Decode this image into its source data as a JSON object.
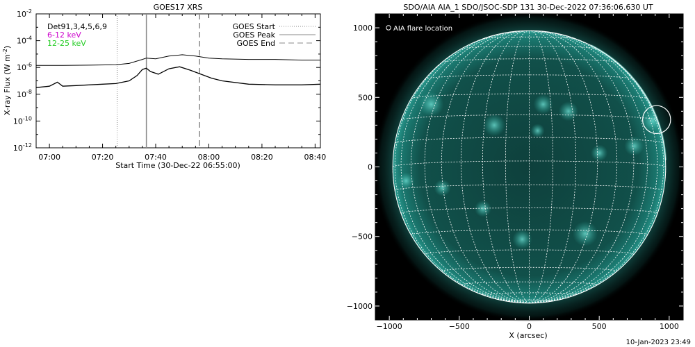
{
  "timestamp": "10-Jan-2023 23:49",
  "chart_data": [
    {
      "type": "line",
      "title": "GOES17 XRS",
      "xlabel": "Start Time (30-Dec-22 06:55:00)",
      "ylabel": "X-ray Flux (W m^-2)",
      "ylabel_main": "X-ray Flux (W m",
      "ylabel_exp": "-2",
      "ylabel_close": ")",
      "xlim_minutes": [
        0,
        107
      ],
      "x_ticks": [
        {
          "label": "07:00",
          "min": 5
        },
        {
          "label": "07:20",
          "min": 25
        },
        {
          "label": "07:40",
          "min": 45
        },
        {
          "label": "08:00",
          "min": 65
        },
        {
          "label": "08:20",
          "min": 85
        },
        {
          "label": "08:40",
          "min": 105
        }
      ],
      "ylim_log": [
        -12,
        -2
      ],
      "y_scale": "log",
      "y_ticks": [
        {
          "exp": -2,
          "base": "10",
          "sup": "-2"
        },
        {
          "exp": -4,
          "base": "10",
          "sup": "-4"
        },
        {
          "exp": -6,
          "base": "10",
          "sup": "-6"
        },
        {
          "exp": -8,
          "base": "10",
          "sup": "-8"
        },
        {
          "exp": -10,
          "base": "10",
          "sup": "-10"
        },
        {
          "exp": -12,
          "base": "10",
          "sup": "-12"
        }
      ],
      "annotation_lines": [
        {
          "text": "Det91,3,4,5,6,9",
          "color": "#000000"
        },
        {
          "text": "6-12 keV",
          "color": "#cc00cc"
        },
        {
          "text": "12-25 keV",
          "color": "#22cc22"
        }
      ],
      "legend": {
        "placement": "top-right",
        "entries": [
          {
            "label": "GOES Start",
            "style": "dotted",
            "color": "#888888"
          },
          {
            "label": "GOES Peak",
            "style": "solid",
            "color": "#888888"
          },
          {
            "label": "GOES End",
            "style": "dashed",
            "color": "#888888"
          }
        ]
      },
      "markers": {
        "start_min": 30.5,
        "peak_min": 41.5,
        "end_min": 61.5
      },
      "series": [
        {
          "color": "#000000",
          "x_min": [
            0,
            10,
            20,
            30,
            35,
            40,
            41.5,
            45,
            50,
            55,
            60,
            65,
            70,
            80,
            90,
            100,
            107
          ],
          "log_flux": [
            -5.85,
            -5.85,
            -5.83,
            -5.8,
            -5.7,
            -5.4,
            -5.3,
            -5.35,
            -5.15,
            -5.05,
            -5.15,
            -5.3,
            -5.35,
            -5.4,
            -5.4,
            -5.45,
            -5.45
          ]
        },
        {
          "color": "#000000",
          "x_min": [
            0,
            5,
            8,
            10,
            15,
            20,
            25,
            30,
            35,
            38,
            40,
            41.5,
            43,
            46,
            50,
            54,
            58,
            62,
            66,
            70,
            80,
            90,
            100,
            107
          ],
          "log_flux": [
            -7.5,
            -7.4,
            -7.1,
            -7.4,
            -7.35,
            -7.3,
            -7.25,
            -7.2,
            -7.0,
            -6.6,
            -6.15,
            -6.05,
            -6.3,
            -6.5,
            -6.1,
            -5.95,
            -6.2,
            -6.5,
            -6.8,
            -7.0,
            -7.25,
            -7.3,
            -7.3,
            -7.25
          ]
        }
      ]
    },
    {
      "type": "image",
      "title": "SDO/AIA AIA_1 SDO/JSOC-SDP 131 30-Dec-2022 07:36:06.630 UT",
      "xlabel": "X (arcsec)",
      "ylabel": "",
      "xlim": [
        -1100,
        1100
      ],
      "ylim": [
        -1100,
        1100
      ],
      "x_ticks": [
        -1000,
        -500,
        0,
        500,
        1000
      ],
      "y_ticks": [
        -1000,
        -500,
        0,
        500,
        1000
      ],
      "x_tick_labels": [
        "−1000",
        "−500",
        "0",
        "500",
        "1000"
      ],
      "y_tick_labels": [
        "−1000",
        "−500",
        "0",
        "500",
        "1000"
      ],
      "legend_label": "AIA flare location",
      "disk_radius_arcsec": 975,
      "flare_location": {
        "x": 910,
        "y": 340
      },
      "colors": {
        "disk": "#0f4a45",
        "bright": "#52c9be",
        "background": "#000000"
      }
    }
  ]
}
